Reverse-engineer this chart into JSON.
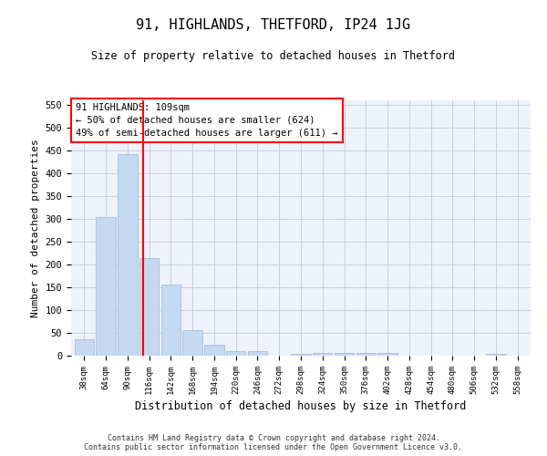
{
  "title": "91, HIGHLANDS, THETFORD, IP24 1JG",
  "subtitle": "Size of property relative to detached houses in Thetford",
  "xlabel": "Distribution of detached houses by size in Thetford",
  "ylabel": "Number of detached properties",
  "bar_color": "#c5d9f1",
  "bar_edge_color": "#9ab8d8",
  "grid_color": "#c8cfe0",
  "background_color": "#eef2fa",
  "categories": [
    "38sqm",
    "64sqm",
    "90sqm",
    "116sqm",
    "142sqm",
    "168sqm",
    "194sqm",
    "220sqm",
    "246sqm",
    "272sqm",
    "298sqm",
    "324sqm",
    "350sqm",
    "376sqm",
    "402sqm",
    "428sqm",
    "454sqm",
    "480sqm",
    "506sqm",
    "532sqm",
    "558sqm"
  ],
  "values": [
    37,
    304,
    443,
    215,
    157,
    57,
    25,
    10,
    10,
    0,
    5,
    6,
    6,
    6,
    6,
    0,
    0,
    0,
    0,
    5,
    0
  ],
  "property_sqm": 109,
  "annotation_line1": "91 HIGHLANDS: 109sqm",
  "annotation_line2": "← 50% of detached houses are smaller (624)",
  "annotation_line3": "49% of semi-detached houses are larger (611) →",
  "ylim": [
    0,
    560
  ],
  "yticks": [
    0,
    50,
    100,
    150,
    200,
    250,
    300,
    350,
    400,
    450,
    500,
    550
  ],
  "footer_line1": "Contains HM Land Registry data © Crown copyright and database right 2024.",
  "footer_line2": "Contains public sector information licensed under the Open Government Licence v3.0."
}
